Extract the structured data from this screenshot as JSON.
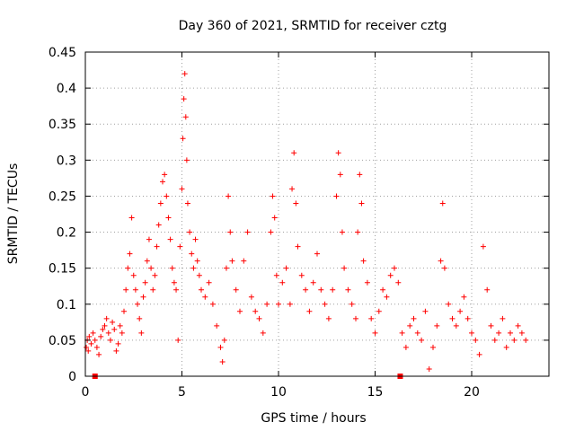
{
  "chart_data": {
    "type": "scatter",
    "title": "Day 360 of 2021, SRMTID for receiver cztg",
    "xlabel": "GPS time / hours",
    "ylabel": "SRMTID / TECUs",
    "xlim": [
      0,
      24
    ],
    "ylim": [
      0,
      0.45
    ],
    "x_ticks": [
      0,
      5,
      10,
      15,
      20
    ],
    "x_tick_labels": [
      "0",
      "5",
      "10",
      "15",
      "20"
    ],
    "y_ticks": [
      0,
      0.05,
      0.1,
      0.15,
      0.2,
      0.25,
      0.3,
      0.35,
      0.4,
      0.45
    ],
    "y_tick_labels": [
      "0",
      "0.05",
      "0.1",
      "0.15",
      "0.2",
      "0.25",
      "0.3",
      "0.35",
      "0.4",
      "0.45"
    ],
    "grid": true,
    "marker": "plus",
    "color": "#ff0000",
    "series": [
      {
        "name": "SRMTID",
        "points": [
          [
            0.05,
            0.04
          ],
          [
            0.1,
            0.05
          ],
          [
            0.15,
            0.035
          ],
          [
            0.2,
            0.055
          ],
          [
            0.3,
            0.045
          ],
          [
            0.4,
            0.06
          ],
          [
            0.5,
            0.05
          ],
          [
            0.6,
            0.04
          ],
          [
            0.7,
            0.03
          ],
          [
            0.8,
            0.055
          ],
          [
            0.9,
            0.065
          ],
          [
            1.0,
            0.07
          ],
          [
            1.1,
            0.08
          ],
          [
            1.2,
            0.06
          ],
          [
            1.3,
            0.05
          ],
          [
            1.4,
            0.075
          ],
          [
            1.5,
            0.065
          ],
          [
            1.6,
            0.035
          ],
          [
            1.7,
            0.045
          ],
          [
            1.8,
            0.07
          ],
          [
            1.9,
            0.06
          ],
          [
            2.0,
            0.09
          ],
          [
            2.1,
            0.12
          ],
          [
            2.2,
            0.15
          ],
          [
            2.3,
            0.17
          ],
          [
            2.4,
            0.22
          ],
          [
            2.5,
            0.14
          ],
          [
            2.6,
            0.12
          ],
          [
            2.7,
            0.1
          ],
          [
            2.8,
            0.08
          ],
          [
            2.9,
            0.06
          ],
          [
            3.0,
            0.11
          ],
          [
            3.1,
            0.13
          ],
          [
            3.2,
            0.16
          ],
          [
            3.3,
            0.19
          ],
          [
            3.4,
            0.15
          ],
          [
            3.5,
            0.12
          ],
          [
            3.6,
            0.14
          ],
          [
            3.7,
            0.18
          ],
          [
            3.8,
            0.21
          ],
          [
            3.9,
            0.24
          ],
          [
            4.0,
            0.27
          ],
          [
            4.1,
            0.28
          ],
          [
            4.2,
            0.25
          ],
          [
            4.3,
            0.22
          ],
          [
            4.4,
            0.19
          ],
          [
            4.5,
            0.15
          ],
          [
            4.6,
            0.13
          ],
          [
            4.7,
            0.12
          ],
          [
            4.8,
            0.05
          ],
          [
            4.9,
            0.18
          ],
          [
            5.0,
            0.26
          ],
          [
            5.05,
            0.33
          ],
          [
            5.1,
            0.385
          ],
          [
            5.15,
            0.42
          ],
          [
            5.2,
            0.36
          ],
          [
            5.25,
            0.3
          ],
          [
            5.3,
            0.24
          ],
          [
            5.4,
            0.2
          ],
          [
            5.5,
            0.17
          ],
          [
            5.6,
            0.15
          ],
          [
            5.7,
            0.19
          ],
          [
            5.8,
            0.16
          ],
          [
            5.9,
            0.14
          ],
          [
            6.0,
            0.12
          ],
          [
            6.2,
            0.11
          ],
          [
            6.4,
            0.13
          ],
          [
            6.6,
            0.1
          ],
          [
            6.8,
            0.07
          ],
          [
            7.0,
            0.04
          ],
          [
            7.1,
            0.02
          ],
          [
            7.2,
            0.05
          ],
          [
            7.3,
            0.15
          ],
          [
            7.4,
            0.25
          ],
          [
            7.5,
            0.2
          ],
          [
            7.6,
            0.16
          ],
          [
            7.8,
            0.12
          ],
          [
            8.0,
            0.09
          ],
          [
            8.2,
            0.16
          ],
          [
            8.4,
            0.2
          ],
          [
            8.6,
            0.11
          ],
          [
            8.8,
            0.09
          ],
          [
            9.0,
            0.08
          ],
          [
            9.2,
            0.06
          ],
          [
            9.4,
            0.1
          ],
          [
            9.6,
            0.2
          ],
          [
            9.7,
            0.25
          ],
          [
            9.8,
            0.22
          ],
          [
            9.9,
            0.14
          ],
          [
            10.0,
            0.1
          ],
          [
            10.2,
            0.13
          ],
          [
            10.4,
            0.15
          ],
          [
            10.6,
            0.1
          ],
          [
            10.7,
            0.26
          ],
          [
            10.8,
            0.31
          ],
          [
            10.9,
            0.24
          ],
          [
            11.0,
            0.18
          ],
          [
            11.2,
            0.14
          ],
          [
            11.4,
            0.12
          ],
          [
            11.6,
            0.09
          ],
          [
            11.8,
            0.13
          ],
          [
            12.0,
            0.17
          ],
          [
            12.2,
            0.12
          ],
          [
            12.4,
            0.1
          ],
          [
            12.6,
            0.08
          ],
          [
            12.8,
            0.12
          ],
          [
            13.0,
            0.25
          ],
          [
            13.1,
            0.31
          ],
          [
            13.2,
            0.28
          ],
          [
            13.3,
            0.2
          ],
          [
            13.4,
            0.15
          ],
          [
            13.6,
            0.12
          ],
          [
            13.8,
            0.1
          ],
          [
            14.0,
            0.08
          ],
          [
            14.1,
            0.2
          ],
          [
            14.2,
            0.28
          ],
          [
            14.3,
            0.24
          ],
          [
            14.4,
            0.16
          ],
          [
            14.6,
            0.13
          ],
          [
            14.8,
            0.08
          ],
          [
            15.0,
            0.06
          ],
          [
            15.2,
            0.09
          ],
          [
            15.4,
            0.12
          ],
          [
            15.6,
            0.11
          ],
          [
            15.8,
            0.14
          ],
          [
            16.0,
            0.15
          ],
          [
            16.2,
            0.13
          ],
          [
            16.4,
            0.06
          ],
          [
            16.6,
            0.04
          ],
          [
            16.8,
            0.07
          ],
          [
            17.0,
            0.08
          ],
          [
            17.2,
            0.06
          ],
          [
            17.4,
            0.05
          ],
          [
            17.6,
            0.09
          ],
          [
            17.8,
            0.01
          ],
          [
            18.0,
            0.04
          ],
          [
            18.2,
            0.07
          ],
          [
            18.4,
            0.16
          ],
          [
            18.5,
            0.24
          ],
          [
            18.6,
            0.15
          ],
          [
            18.8,
            0.1
          ],
          [
            19.0,
            0.08
          ],
          [
            19.2,
            0.07
          ],
          [
            19.4,
            0.09
          ],
          [
            19.6,
            0.11
          ],
          [
            19.8,
            0.08
          ],
          [
            20.0,
            0.06
          ],
          [
            20.2,
            0.05
          ],
          [
            20.4,
            0.03
          ],
          [
            20.6,
            0.18
          ],
          [
            20.8,
            0.12
          ],
          [
            21.0,
            0.07
          ],
          [
            21.2,
            0.05
          ],
          [
            21.4,
            0.06
          ],
          [
            21.6,
            0.08
          ],
          [
            21.8,
            0.04
          ],
          [
            22.0,
            0.06
          ],
          [
            22.2,
            0.05
          ],
          [
            22.4,
            0.07
          ],
          [
            22.6,
            0.06
          ],
          [
            22.8,
            0.05
          ]
        ]
      }
    ],
    "baseline_markers": [
      0.5,
      16.3
    ]
  }
}
